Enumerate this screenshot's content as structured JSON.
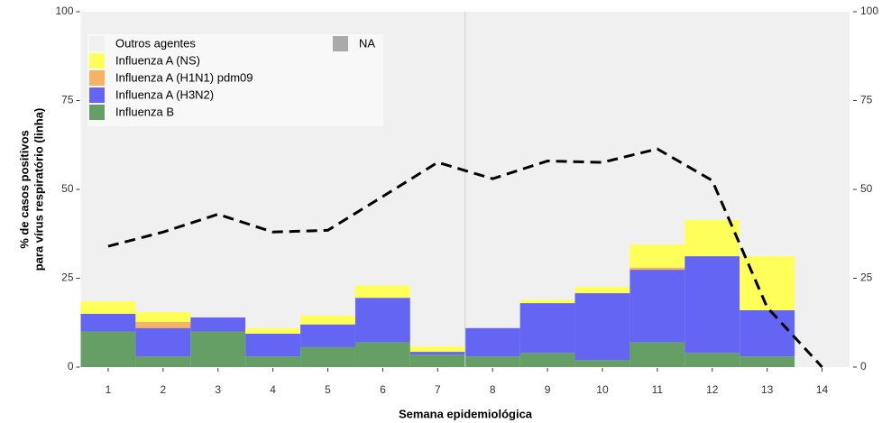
{
  "chart_data": {
    "type": "stacked_bar_line",
    "xlabel": "Semana epidemiológica",
    "ylabel": [
      "% de casos positivos",
      "para vírus respiratório (linha)"
    ],
    "x": [
      1,
      2,
      3,
      4,
      5,
      6,
      7,
      8,
      9,
      10,
      11,
      12,
      13
    ],
    "xlim": [
      0.5,
      14.5
    ],
    "xticks": [
      1,
      2,
      3,
      4,
      5,
      6,
      7,
      8,
      9,
      10,
      11,
      12,
      13,
      14
    ],
    "ylim": [
      0,
      100
    ],
    "yticks": [
      0,
      25,
      50,
      75,
      100
    ],
    "y2lim": [
      0,
      100
    ],
    "y2ticks": [
      0,
      25,
      50,
      75,
      100
    ],
    "vline": 7.5,
    "series": [
      {
        "name": "Influenza B",
        "color": "#659f65",
        "values": [
          10,
          3,
          10,
          3,
          5.6,
          7,
          3.5,
          3,
          4,
          2,
          7,
          4,
          3
        ]
      },
      {
        "name": "Influenza A (H3N2)",
        "color": "#6565f3",
        "values": [
          5,
          8,
          4,
          6.4,
          6.4,
          12.5,
          0.8,
          8,
          14,
          18.8,
          20.4,
          27.2,
          13
        ]
      },
      {
        "name": "Influenza A (H1N1) pdm09",
        "color": "#f7b263",
        "values": [
          0,
          1.7,
          0,
          0,
          0,
          0,
          0,
          0,
          0,
          0,
          0.6,
          0,
          0
        ]
      },
      {
        "name": "Influenza A (NS)",
        "color": "#ffff5a",
        "values": [
          3.5,
          2.8,
          0,
          1.6,
          2.5,
          3.5,
          1.5,
          0,
          1,
          1.8,
          6.5,
          10.2,
          15.2
        ]
      },
      {
        "name": "Outros agentes",
        "color": "#f0f0f0",
        "values": [
          81.5,
          84.5,
          86,
          89,
          85.5,
          77,
          94.2,
          89,
          81,
          77.4,
          65.5,
          58.6,
          68.8
        ]
      }
    ],
    "na_legend": {
      "name": "NA",
      "color": "#aaaaaa"
    },
    "line": {
      "x": [
        1,
        2,
        3,
        4,
        5,
        6,
        7,
        8,
        9,
        10,
        11,
        12,
        13,
        14
      ],
      "values": [
        34,
        38,
        43,
        38,
        38.5,
        48,
        57.6,
        53,
        58,
        57.6,
        61.4,
        52.5,
        16.8,
        0
      ],
      "axis": "y2",
      "color": "#000000"
    }
  }
}
